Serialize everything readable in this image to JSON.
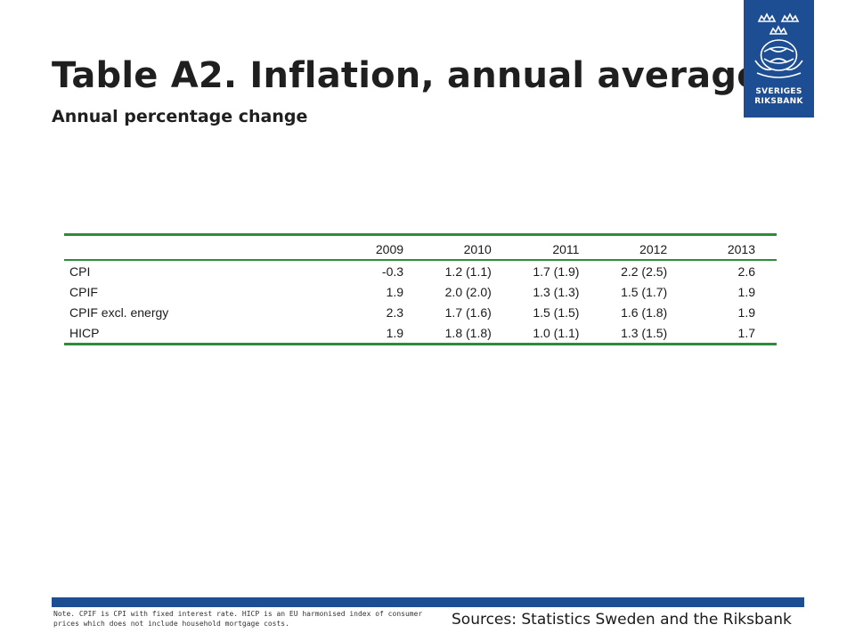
{
  "header": {
    "title": "Table A2. Inflation, annual average",
    "subtitle": "Annual percentage change"
  },
  "logo": {
    "line1": "SVERIGES",
    "line2": "RIKSBANK",
    "color": "#1d4e93"
  },
  "table": {
    "years": [
      "2009",
      "2010",
      "2011",
      "2012",
      "2013"
    ],
    "rows": [
      {
        "label": "CPI",
        "values": [
          "-0.3",
          "1.2 (1.1)",
          "1.7 (1.9)",
          "2.2 (2.5)",
          "2.6"
        ]
      },
      {
        "label": "CPIF",
        "values": [
          "1.9",
          "2.0 (2.0)",
          "1.3 (1.3)",
          "1.5 (1.7)",
          "1.9"
        ]
      },
      {
        "label": "CPIF excl. energy",
        "values": [
          "2.3",
          "1.7 (1.6)",
          "1.5 (1.5)",
          "1.6 (1.8)",
          "1.9"
        ]
      },
      {
        "label": "HICP",
        "values": [
          "1.9",
          "1.8 (1.8)",
          "1.0 (1.1)",
          "1.3 (1.5)",
          "1.7"
        ]
      }
    ],
    "rule_color": "#2e8b3a"
  },
  "footer": {
    "note": "Note. CPIF is CPI with fixed interest rate. HICP is an EU harmonised index of consumer prices which does not include household mortgage costs.",
    "sources": "Sources: Statistics Sweden and the Riksbank"
  }
}
